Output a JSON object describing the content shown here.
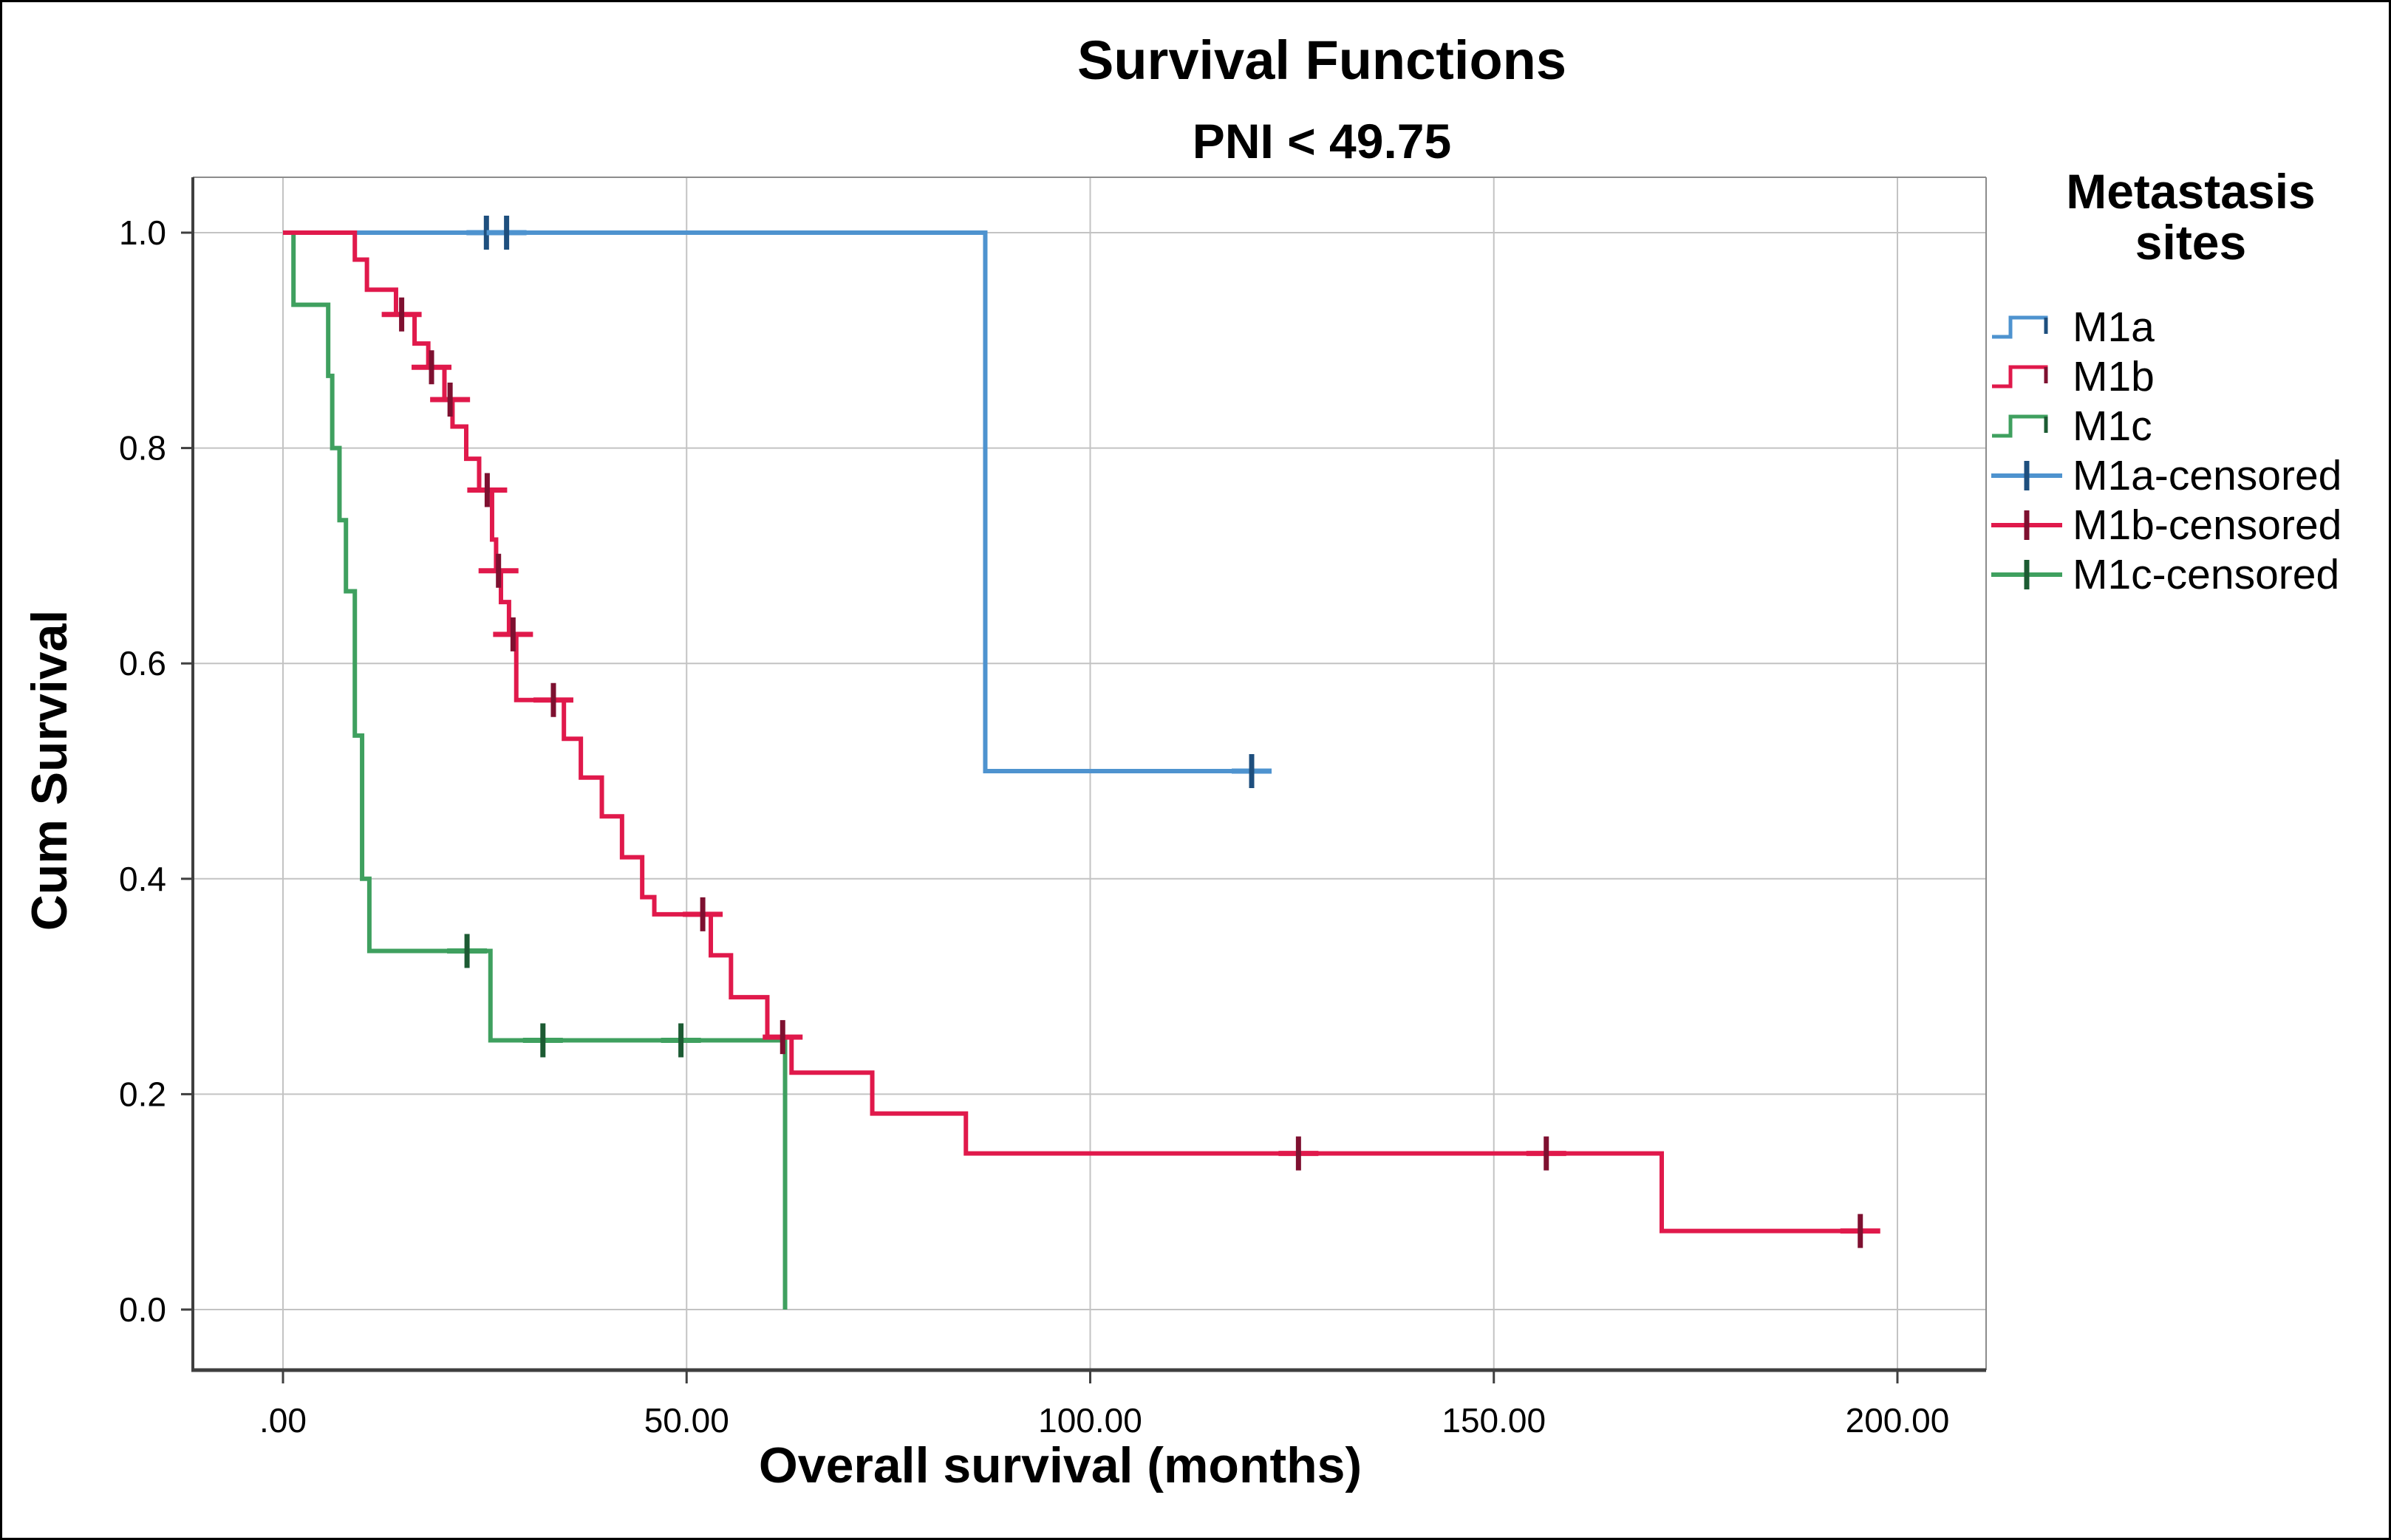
{
  "title": "Survival Functions",
  "subtitle": "PNI < 49.75",
  "axes": {
    "x_label": "Overall survival (months)",
    "y_label": "Cum Survival",
    "x_tick_labels": [
      ".00",
      "50.00",
      "100.00",
      "150.00",
      "200.00"
    ],
    "x_tick_values": [
      0,
      50,
      100,
      150,
      200
    ],
    "y_tick_labels": [
      "0.0",
      "0.2",
      "0.4",
      "0.6",
      "0.8",
      "1.0"
    ],
    "y_tick_values": [
      0,
      0.2,
      0.4,
      0.6,
      0.8,
      1.0
    ]
  },
  "legend": {
    "title": "Metastasis sites",
    "entries": [
      {
        "label": "M1a",
        "type": "step",
        "color": "#4E93CF",
        "dark": "#1E4F7E"
      },
      {
        "label": "M1b",
        "type": "step",
        "color": "#E0194B",
        "dark": "#7E1030"
      },
      {
        "label": "M1c",
        "type": "step",
        "color": "#3FA05F",
        "dark": "#1C5B33"
      },
      {
        "label": "M1a-censored",
        "type": "censored",
        "color": "#4E93CF",
        "dark": "#1E4F7E"
      },
      {
        "label": "M1b-censored",
        "type": "censored",
        "color": "#E0194B",
        "dark": "#7E1030"
      },
      {
        "label": "M1c-censored",
        "type": "censored",
        "color": "#3FA05F",
        "dark": "#1C5B33"
      }
    ]
  },
  "chart_data": {
    "type": "line",
    "subtype": "kaplan-meier-step",
    "title": "Survival Functions",
    "subtitle": "PNI < 49.75",
    "xlabel": "Overall survival (months)",
    "ylabel": "Cum Survival",
    "xlim": [
      -11,
      211
    ],
    "ylim": [
      -0.056,
      1.052
    ],
    "grid": true,
    "legend_position": "right",
    "gridline_color": "#C3C3C3",
    "frame_color": "#3F3F3F",
    "series": [
      {
        "name": "M1a",
        "color": "#4E93CF",
        "dark": "#1E4F7E",
        "steps": [
          [
            0,
            1.0
          ],
          [
            87,
            0.5
          ]
        ],
        "end_time": 120.5,
        "censored": [
          [
            25.2,
            1.0
          ],
          [
            27.7,
            1.0
          ],
          [
            120,
            0.5
          ]
        ]
      },
      {
        "name": "M1b",
        "color": "#E0194B",
        "dark": "#7E1030",
        "steps": [
          [
            0,
            1.0
          ],
          [
            8.9,
            0.975
          ],
          [
            10.4,
            0.947
          ],
          [
            14,
            0.924
          ],
          [
            16.3,
            0.897
          ],
          [
            18,
            0.875
          ],
          [
            20,
            0.845
          ],
          [
            21,
            0.82
          ],
          [
            22.7,
            0.79
          ],
          [
            24.3,
            0.761
          ],
          [
            25.9,
            0.715
          ],
          [
            26.4,
            0.686
          ],
          [
            27,
            0.657
          ],
          [
            28,
            0.627
          ],
          [
            28.9,
            0.566
          ],
          [
            34.8,
            0.53
          ],
          [
            36.9,
            0.494
          ],
          [
            39.5,
            0.458
          ],
          [
            42,
            0.42
          ],
          [
            44.5,
            0.383
          ],
          [
            46,
            0.367
          ],
          [
            53,
            0.329
          ],
          [
            55.5,
            0.29
          ],
          [
            60,
            0.253
          ],
          [
            63,
            0.22
          ],
          [
            73,
            0.182
          ],
          [
            84.6,
            0.145
          ],
          [
            170.8,
            0.073
          ]
        ],
        "end_time": 196.5,
        "censored": [
          [
            14.7,
            0.924
          ],
          [
            18.4,
            0.875
          ],
          [
            20.7,
            0.845
          ],
          [
            25.3,
            0.761
          ],
          [
            26.7,
            0.686
          ],
          [
            28.5,
            0.627
          ],
          [
            33.5,
            0.566
          ],
          [
            52,
            0.367
          ],
          [
            61.9,
            0.253
          ],
          [
            125.8,
            0.145
          ],
          [
            156.5,
            0.145
          ],
          [
            195.4,
            0.073
          ]
        ]
      },
      {
        "name": "M1c",
        "color": "#3FA05F",
        "dark": "#1C5B33",
        "steps": [
          [
            0,
            1.0
          ],
          [
            1.3,
            0.933
          ],
          [
            5.6,
            0.867
          ],
          [
            6.1,
            0.8
          ],
          [
            7,
            0.733
          ],
          [
            7.8,
            0.667
          ],
          [
            8.9,
            0.533
          ],
          [
            9.8,
            0.4
          ],
          [
            10.7,
            0.333
          ],
          [
            25.7,
            0.25
          ],
          [
            62.2,
            0.0
          ]
        ],
        "end_time": 62.2,
        "censored": [
          [
            22.8,
            0.333
          ],
          [
            32.2,
            0.25
          ],
          [
            49.3,
            0.25
          ]
        ]
      }
    ]
  }
}
